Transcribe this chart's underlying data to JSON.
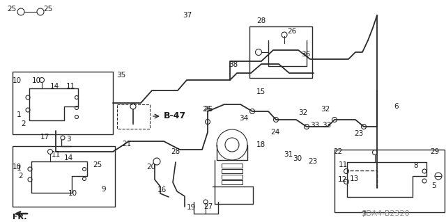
{
  "bg_color": "#ffffff",
  "line_color": "#2a2a2a",
  "label_color": "#1a1a1a",
  "watermark_color": "#888888",
  "font_size_label": 7.5,
  "font_size_watermark": 8,
  "font_size_b47": 9,
  "watermark": "SDA4-B2320"
}
